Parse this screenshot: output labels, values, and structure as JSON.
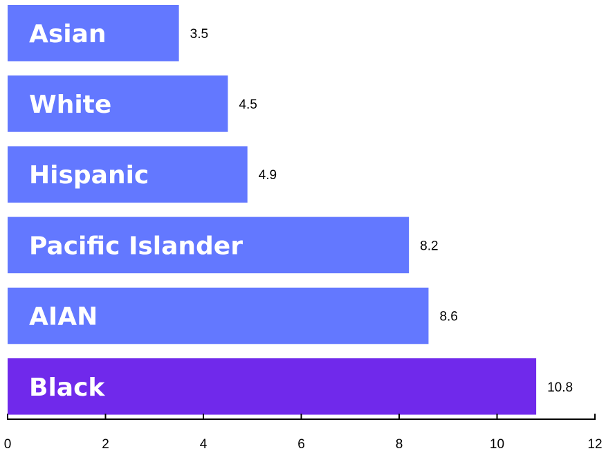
{
  "chart_data": {
    "type": "bar",
    "orientation": "horizontal",
    "categories": [
      "Asian",
      "White",
      "Hispanic",
      "Pacific Islander",
      "AIAN",
      "Black"
    ],
    "values": [
      3.5,
      4.5,
      4.9,
      8.2,
      8.6,
      10.8
    ],
    "bar_colors": [
      "#6378FF",
      "#6378FF",
      "#6378FF",
      "#6378FF",
      "#6378FF",
      "#7029EB"
    ],
    "xlim": [
      0,
      12
    ],
    "xticks": [
      0,
      2,
      4,
      6,
      8,
      10,
      12
    ],
    "data_labels": [
      "3.5",
      "4.5",
      "4.9",
      "8.2",
      "8.6",
      "10.8"
    ],
    "tick_labels": [
      "0",
      "2",
      "4",
      "6",
      "8",
      "10",
      "12"
    ],
    "grid": false,
    "legend": "none",
    "title": "",
    "xlabel": "",
    "ylabel": ""
  }
}
